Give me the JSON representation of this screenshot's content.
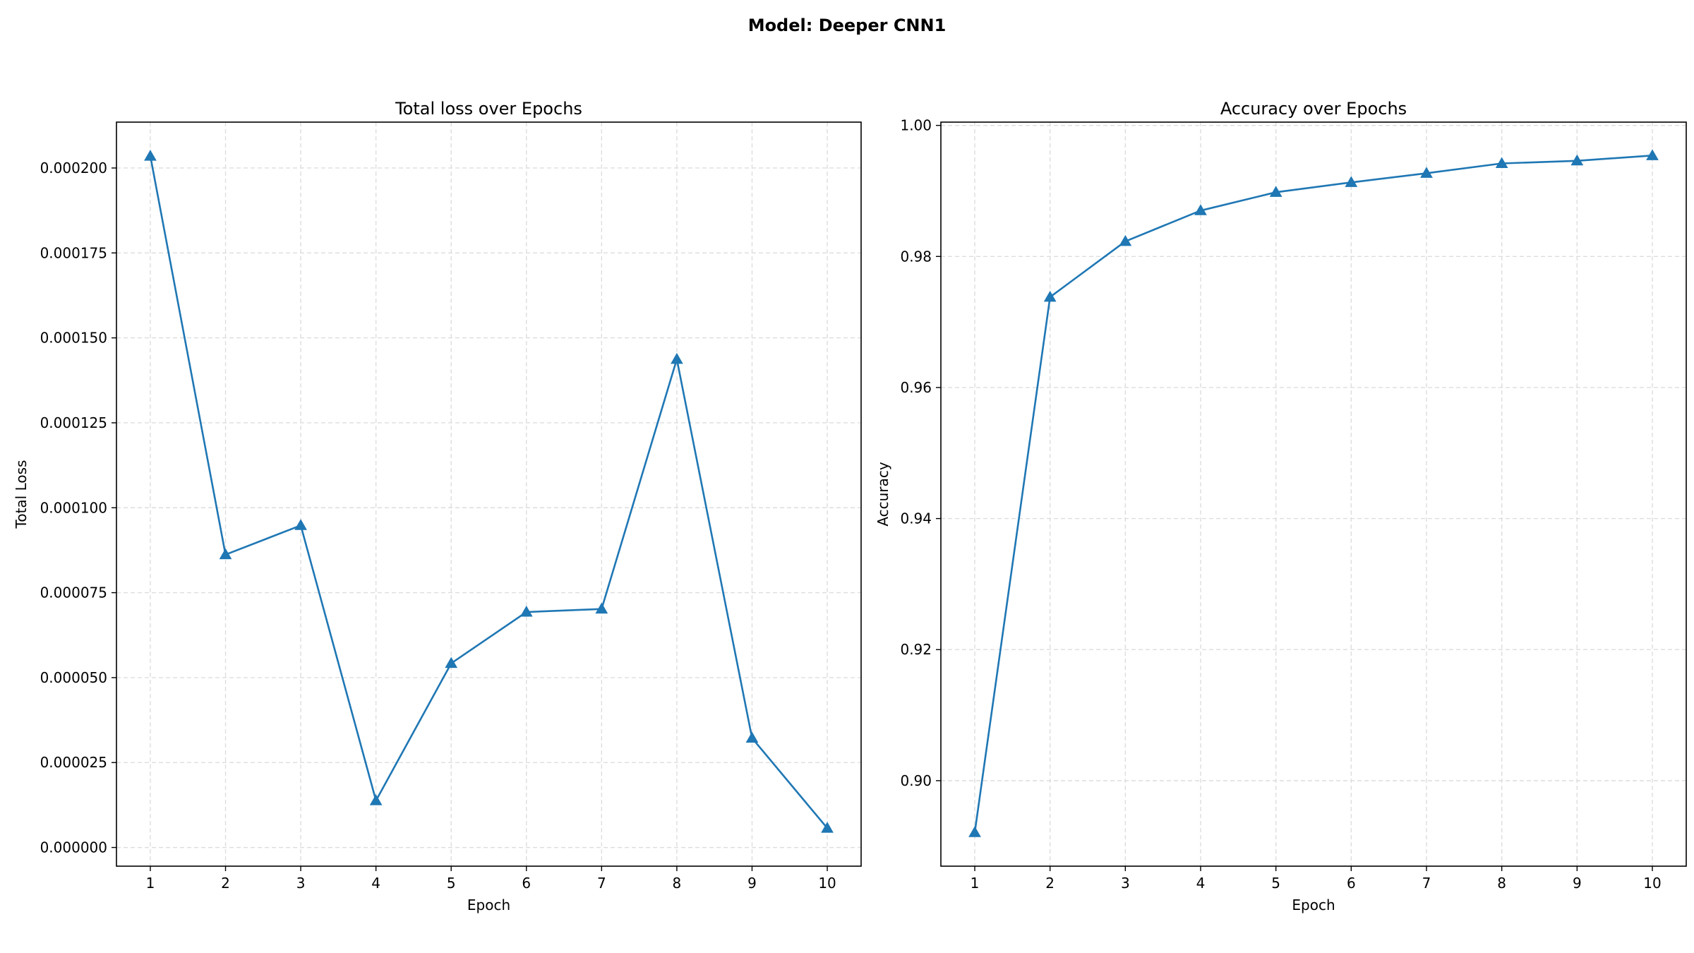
{
  "figure": {
    "title": "Model: Deeper CNN1"
  },
  "colors": {
    "line": "#1f77b4",
    "grid": "#dddddd",
    "axis": "#000000"
  },
  "chart_data": [
    {
      "type": "line",
      "title": "Total loss over Epochs",
      "xlabel": "Epoch",
      "ylabel": "Total Loss",
      "x": [
        1,
        2,
        3,
        4,
        5,
        6,
        7,
        8,
        9,
        10
      ],
      "xlim": [
        0.55,
        10.45
      ],
      "ylim": [
        -5.5e-06,
        0.0002135
      ],
      "xticks": [
        1,
        2,
        3,
        4,
        5,
        6,
        7,
        8,
        9,
        10
      ],
      "xtick_labels": [
        "1",
        "2",
        "3",
        "4",
        "5",
        "6",
        "7",
        "8",
        "9",
        "10"
      ],
      "yticks": [
        0,
        2.5e-05,
        5e-05,
        7.5e-05,
        0.0001,
        0.000125,
        0.00015,
        0.000175,
        0.0002
      ],
      "ytick_labels": [
        "0.000000",
        "0.000025",
        "0.000050",
        "0.000075",
        "0.000100",
        "0.000125",
        "0.000150",
        "0.000175",
        "0.000200"
      ],
      "grid": true,
      "marker": "triangle",
      "series": [
        {
          "values": [
            0.0002035,
            8.62e-05,
            9.48e-05,
            1.38e-05,
            5.42e-05,
            6.93e-05,
            7.02e-05,
            0.0001437,
            3.22e-05,
            5.7e-06
          ]
        }
      ]
    },
    {
      "type": "line",
      "title": "Accuracy over Epochs",
      "xlabel": "Epoch",
      "ylabel": "Accuracy",
      "x": [
        1,
        2,
        3,
        4,
        5,
        6,
        7,
        8,
        9,
        10
      ],
      "xlim": [
        0.55,
        10.45
      ],
      "ylim": [
        0.88695,
        1.0005
      ],
      "xticks": [
        1,
        2,
        3,
        4,
        5,
        6,
        7,
        8,
        9,
        10
      ],
      "xtick_labels": [
        "1",
        "2",
        "3",
        "4",
        "5",
        "6",
        "7",
        "8",
        "9",
        "10"
      ],
      "yticks": [
        0.9,
        0.92,
        0.94,
        0.96,
        0.98,
        1.0
      ],
      "ytick_labels": [
        "0.90",
        "0.92",
        "0.94",
        "0.96",
        "0.98",
        "1.00"
      ],
      "grid": true,
      "marker": "triangle",
      "series": [
        {
          "values": [
            0.8921,
            0.9738,
            0.9823,
            0.987,
            0.9898,
            0.9913,
            0.9927,
            0.9942,
            0.9946,
            0.9954
          ]
        }
      ]
    }
  ]
}
